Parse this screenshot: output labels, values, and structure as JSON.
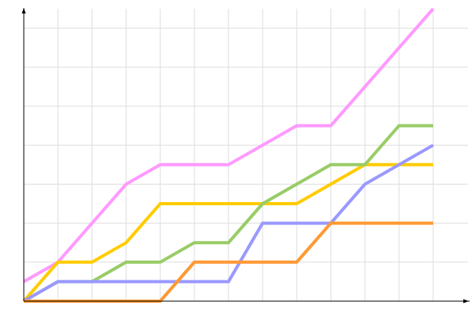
{
  "chart_data": {
    "type": "line",
    "title": "",
    "xlabel": "",
    "ylabel": "",
    "x": [
      0,
      1,
      2,
      3,
      4,
      5,
      6,
      7,
      8,
      9,
      10,
      11,
      12
    ],
    "xlim": [
      0,
      13.1
    ],
    "ylim": [
      0,
      15
    ],
    "grid": true,
    "legend": "none",
    "series": [
      {
        "color": "#ff99ff",
        "values": [
          1,
          2,
          4,
          6,
          7,
          7,
          7,
          8,
          9,
          9,
          11,
          13,
          15
        ]
      },
      {
        "color": "#ffcc00",
        "values": [
          0,
          2,
          2,
          3,
          5,
          5,
          5,
          5,
          5,
          6,
          7,
          7,
          7
        ]
      },
      {
        "color": "#99cc66",
        "values": [
          0,
          1,
          1,
          2,
          2,
          3,
          3,
          5,
          6,
          7,
          7,
          9,
          9
        ]
      },
      {
        "color": "#9999ff",
        "values": [
          0,
          1,
          1,
          1,
          1,
          1,
          1,
          4,
          4,
          4,
          6,
          7,
          8
        ]
      },
      {
        "color": "#ff9933",
        "values": [
          0,
          0,
          0,
          0,
          0,
          2,
          2,
          2,
          2,
          4,
          4,
          4,
          4
        ]
      }
    ]
  }
}
